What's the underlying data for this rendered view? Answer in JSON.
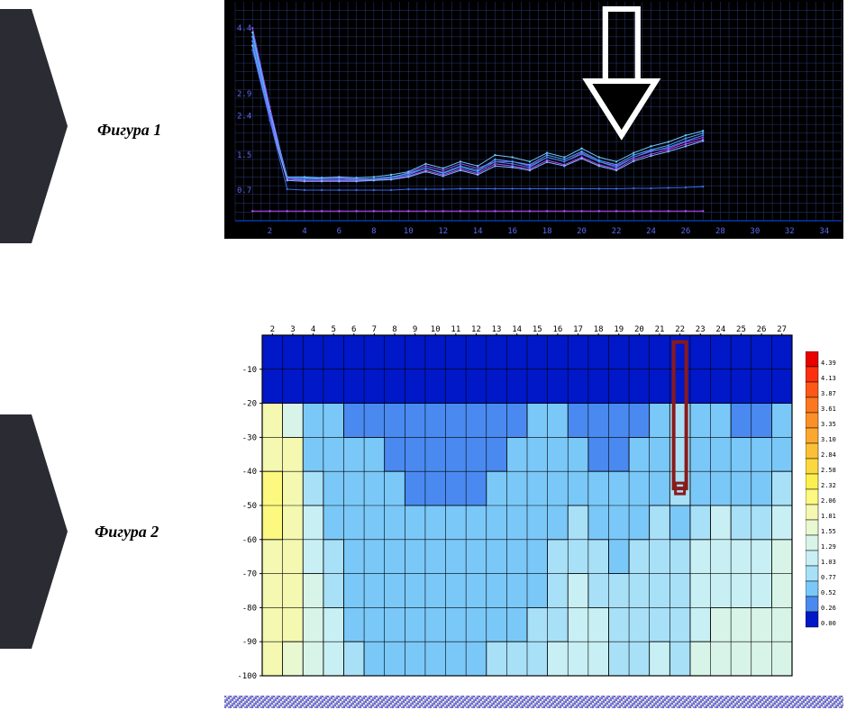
{
  "labels": {
    "fig1": "Фигура 1",
    "fig2": "Фигура 2"
  },
  "chevron": {
    "fill": "#2a2b33"
  },
  "chart1": {
    "type": "line",
    "background": "#000000",
    "grid_color": "#2a3a7a",
    "axis_color": "#0055ff",
    "tick_color": "#5a6af0",
    "y_ticks": [
      "0.7",
      "1.5",
      "2.4",
      "2.9",
      "4.4"
    ],
    "y_tick_vals": [
      0.7,
      1.5,
      2.4,
      2.9,
      4.4
    ],
    "x_ticks": [
      "2",
      "4",
      "6",
      "8",
      "10",
      "12",
      "14",
      "16",
      "18",
      "20",
      "22",
      "24",
      "26",
      "28",
      "30",
      "32",
      "34"
    ],
    "x_min": 0,
    "x_max": 35,
    "y_min": 0,
    "y_max": 5,
    "series": [
      {
        "color": "#9a4aff",
        "y": [
          4.4,
          2.6,
          0.95,
          0.95,
          0.98,
          0.98,
          0.95,
          0.95,
          0.98,
          1.1,
          1.25,
          1.15,
          1.3,
          1.2,
          1.35,
          1.35,
          1.25,
          1.45,
          1.35,
          1.55,
          1.35,
          1.25,
          1.45,
          1.6,
          1.65,
          1.8,
          1.9
        ]
      },
      {
        "color": "#6fc8ff",
        "y": [
          4.3,
          2.5,
          1.0,
          1.0,
          0.98,
          1.0,
          0.98,
          1.0,
          1.05,
          1.12,
          1.3,
          1.2,
          1.35,
          1.25,
          1.5,
          1.45,
          1.35,
          1.55,
          1.45,
          1.65,
          1.45,
          1.35,
          1.55,
          1.7,
          1.8,
          1.95,
          2.05
        ]
      },
      {
        "color": "#4aa8ff",
        "y": [
          4.2,
          2.45,
          1.0,
          0.98,
          0.95,
          0.95,
          0.95,
          0.96,
          1.0,
          1.08,
          1.2,
          1.1,
          1.25,
          1.15,
          1.4,
          1.35,
          1.28,
          1.5,
          1.4,
          1.58,
          1.38,
          1.28,
          1.5,
          1.62,
          1.72,
          1.88,
          2.0
        ]
      },
      {
        "color": "#3d8df7",
        "y": [
          4.1,
          2.4,
          0.98,
          0.95,
          0.95,
          0.95,
          0.94,
          0.95,
          0.98,
          1.05,
          1.2,
          1.08,
          1.22,
          1.12,
          1.35,
          1.3,
          1.22,
          1.45,
          1.35,
          1.52,
          1.35,
          1.22,
          1.45,
          1.58,
          1.68,
          1.82,
          1.95
        ]
      },
      {
        "color": "#b84aff",
        "y": [
          4.0,
          2.35,
          0.95,
          0.92,
          0.92,
          0.92,
          0.92,
          0.93,
          0.95,
          1.02,
          1.15,
          1.05,
          1.18,
          1.08,
          1.3,
          1.25,
          1.18,
          1.38,
          1.28,
          1.45,
          1.28,
          1.18,
          1.4,
          1.52,
          1.62,
          1.75,
          1.85
        ]
      },
      {
        "color": "#7fb8ff",
        "y": [
          4.0,
          2.3,
          0.92,
          0.9,
          0.9,
          0.9,
          0.9,
          0.92,
          0.94,
          1.0,
          1.12,
          1.02,
          1.15,
          1.05,
          1.25,
          1.22,
          1.15,
          1.34,
          1.25,
          1.42,
          1.25,
          1.15,
          1.36,
          1.48,
          1.58,
          1.7,
          1.82
        ]
      },
      {
        "color": "#3a68e8",
        "y": [
          3.9,
          2.3,
          0.72,
          0.7,
          0.7,
          0.7,
          0.7,
          0.7,
          0.7,
          0.72,
          0.72,
          0.72,
          0.73,
          0.73,
          0.73,
          0.73,
          0.73,
          0.73,
          0.73,
          0.73,
          0.73,
          0.73,
          0.74,
          0.74,
          0.75,
          0.76,
          0.78
        ]
      },
      {
        "color": "#c24aff",
        "y": [
          0.22,
          0.22,
          0.22,
          0.22,
          0.22,
          0.22,
          0.22,
          0.22,
          0.22,
          0.22,
          0.22,
          0.22,
          0.22,
          0.22,
          0.22,
          0.22,
          0.22,
          0.22,
          0.22,
          0.22,
          0.22,
          0.22,
          0.22,
          0.22,
          0.22,
          0.22,
          0.22
        ]
      }
    ],
    "arrow": {
      "x": 22.3,
      "stroke": "#ffffff",
      "stroke_width": 6
    }
  },
  "chart2": {
    "type": "heatmap",
    "axis_color": "#000000",
    "grid_color": "#000000",
    "font_size": 9,
    "x_ticks": [
      2,
      3,
      4,
      5,
      6,
      7,
      8,
      9,
      10,
      11,
      12,
      13,
      14,
      15,
      16,
      17,
      18,
      19,
      20,
      21,
      22,
      23,
      24,
      25,
      26,
      27
    ],
    "y_ticks": [
      -10,
      -20,
      -30,
      -40,
      -50,
      -60,
      -70,
      -80,
      -90,
      -100
    ],
    "x_min": 1.5,
    "x_max": 27.5,
    "y_min": -100,
    "y_max": 0,
    "palette": [
      {
        "v": 0.0,
        "c": "#0018c8"
      },
      {
        "v": 0.26,
        "c": "#4a8af0"
      },
      {
        "v": 0.52,
        "c": "#7ac8f8"
      },
      {
        "v": 0.77,
        "c": "#a8e0f8"
      },
      {
        "v": 1.03,
        "c": "#c8f0f4"
      },
      {
        "v": 1.29,
        "c": "#d8f4e8"
      },
      {
        "v": 1.55,
        "c": "#e8f8d0"
      },
      {
        "v": 1.81,
        "c": "#f4f8b0"
      },
      {
        "v": 2.06,
        "c": "#fcf880"
      },
      {
        "v": 2.32,
        "c": "#fcf050"
      },
      {
        "v": 2.58,
        "c": "#fcd840"
      },
      {
        "v": 2.84,
        "c": "#fcc038"
      },
      {
        "v": 3.1,
        "c": "#fca830"
      },
      {
        "v": 3.35,
        "c": "#fc9028"
      },
      {
        "v": 3.61,
        "c": "#fc7820"
      },
      {
        "v": 3.87,
        "c": "#fc5818"
      },
      {
        "v": 4.13,
        "c": "#fc3010"
      },
      {
        "v": 4.39,
        "c": "#e80000"
      }
    ],
    "grid": [
      [
        0.0,
        0.0,
        0.0,
        0.0,
        0.0,
        0.0,
        0.0,
        0.0,
        0.0,
        0.0,
        0.0,
        0.0,
        0.0,
        0.0,
        0.0,
        0.0,
        0.0,
        0.0,
        0.0,
        0.0,
        0.0,
        0.0,
        0.0,
        0.0,
        0.0,
        0.0
      ],
      [
        0.2,
        0.2,
        0.2,
        0.2,
        0.2,
        0.2,
        0.2,
        0.2,
        0.2,
        0.2,
        0.2,
        0.2,
        0.2,
        0.2,
        0.2,
        0.2,
        0.2,
        0.2,
        0.2,
        0.25,
        0.25,
        0.22,
        0.22,
        0.22,
        0.22,
        0.22
      ],
      [
        1.85,
        1.3,
        0.6,
        0.55,
        0.5,
        0.5,
        0.5,
        0.45,
        0.45,
        0.45,
        0.45,
        0.48,
        0.5,
        0.55,
        0.55,
        0.5,
        0.48,
        0.48,
        0.48,
        0.6,
        0.78,
        0.55,
        0.55,
        0.5,
        0.5,
        0.55
      ],
      [
        2.05,
        1.9,
        0.7,
        0.6,
        0.55,
        0.6,
        0.5,
        0.48,
        0.48,
        0.48,
        0.48,
        0.5,
        0.52,
        0.55,
        0.58,
        0.55,
        0.5,
        0.5,
        0.52,
        0.65,
        0.9,
        0.6,
        0.6,
        0.55,
        0.6,
        0.72
      ],
      [
        2.1,
        2.05,
        0.85,
        0.65,
        0.58,
        0.55,
        0.52,
        0.5,
        0.5,
        0.5,
        0.5,
        0.52,
        0.55,
        0.58,
        0.62,
        0.6,
        0.55,
        0.55,
        0.58,
        0.7,
        0.78,
        0.65,
        0.68,
        0.62,
        0.75,
        0.9
      ],
      [
        2.1,
        2.0,
        1.05,
        0.7,
        0.6,
        0.56,
        0.54,
        0.52,
        0.52,
        0.52,
        0.52,
        0.55,
        0.58,
        0.62,
        0.68,
        0.78,
        0.7,
        0.62,
        0.7,
        0.78,
        0.72,
        0.95,
        1.05,
        0.95,
        1.0,
        1.15
      ],
      [
        2.05,
        1.95,
        1.2,
        0.78,
        0.62,
        0.58,
        0.56,
        0.54,
        0.54,
        0.54,
        0.55,
        0.6,
        0.62,
        0.68,
        0.78,
        0.92,
        0.82,
        0.7,
        0.78,
        0.85,
        0.8,
        1.1,
        1.2,
        1.12,
        1.15,
        1.3
      ],
      [
        2.0,
        1.9,
        1.35,
        0.9,
        0.66,
        0.6,
        0.58,
        0.56,
        0.56,
        0.56,
        0.58,
        0.65,
        0.68,
        0.75,
        0.88,
        1.05,
        0.95,
        0.8,
        0.85,
        0.92,
        0.88,
        1.18,
        1.28,
        1.25,
        1.25,
        1.4
      ],
      [
        1.95,
        1.85,
        1.45,
        1.05,
        0.72,
        0.62,
        0.6,
        0.58,
        0.58,
        0.58,
        0.6,
        0.7,
        0.75,
        0.85,
        0.98,
        1.15,
        1.05,
        0.9,
        0.92,
        0.98,
        0.95,
        1.25,
        1.35,
        1.32,
        1.3,
        1.45
      ],
      [
        1.9,
        1.8,
        1.5,
        1.2,
        0.8,
        0.65,
        0.62,
        0.6,
        0.6,
        0.6,
        0.62,
        0.78,
        0.82,
        0.95,
        1.08,
        1.22,
        1.12,
        1.0,
        0.98,
        1.05,
        1.02,
        1.3,
        1.4,
        1.38,
        1.35,
        1.5
      ]
    ],
    "marker": {
      "x": 22,
      "y_top": -2,
      "y_bot": -45,
      "stroke": "#8a1a1a",
      "stroke_width": 4
    }
  }
}
